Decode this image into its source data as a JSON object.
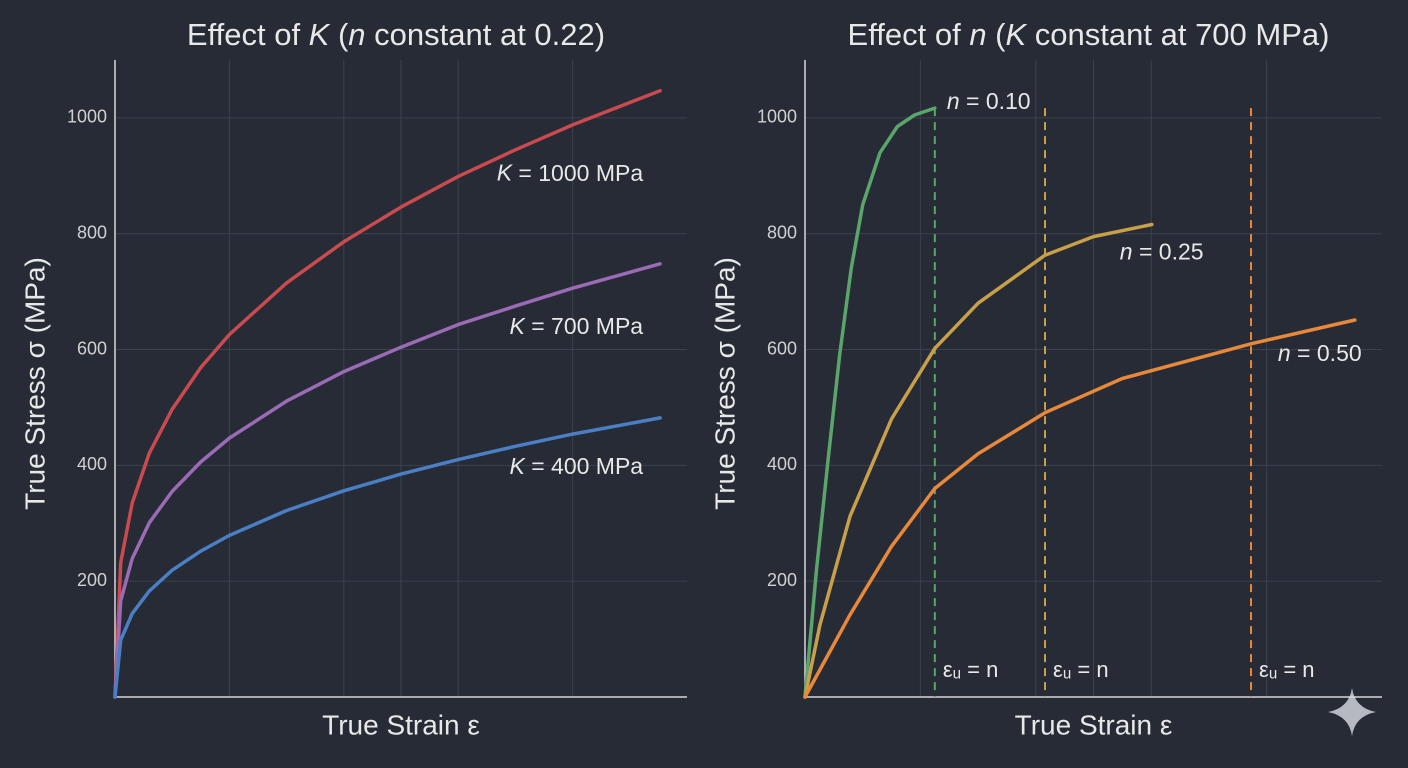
{
  "chart_data": [
    {
      "type": "line",
      "title": "Effect of K (n constant at 0.22)",
      "x_label": "True Strain ε",
      "y_label": "True Stress σ (MPa)",
      "xlim": [
        0,
        1
      ],
      "ylim": [
        0,
        1100
      ],
      "yticks": [
        200,
        400,
        600,
        800,
        1000
      ],
      "grid": true,
      "x": [
        0,
        0.01,
        0.03,
        0.06,
        0.1,
        0.15,
        0.2,
        0.3,
        0.4,
        0.5,
        0.6,
        0.7,
        0.8,
        0.953
      ],
      "series": [
        {
          "name": "K = 1000 MPa",
          "color": "#c94a4f",
          "values": [
            0,
            232,
            335,
            421,
            497,
            569,
            626,
            715,
            786,
            846,
            899,
            945,
            988,
            1047
          ]
        },
        {
          "name": "K = 700 MPa",
          "color": "#9b6bb5",
          "values": [
            0,
            166,
            239,
            301,
            355,
            406,
            447,
            511,
            562,
            604,
            643,
            675,
            706,
            748
          ]
        },
        {
          "name": "K = 400 MPa",
          "color": "#4a7fc4",
          "values": [
            0,
            98,
            144,
            183,
            219,
            252,
            279,
            322,
            356,
            385,
            410,
            433,
            454,
            482
          ]
        }
      ]
    },
    {
      "type": "line",
      "title": "Effect of n (K constant at 700 MPa)",
      "x_label": "True Strain ε",
      "y_label": "True Stress σ (MPa)",
      "xlim": [
        0,
        1
      ],
      "ylim": [
        0,
        1100
      ],
      "yticks": [
        200,
        400,
        600,
        800,
        1000
      ],
      "grid": true,
      "series": [
        {
          "name": "n = 0.10",
          "color": "#5aa66a",
          "x": [
            0,
            0.02,
            0.04,
            0.06,
            0.08,
            0.1,
            0.13,
            0.16,
            0.19,
            0.225
          ],
          "values": [
            0,
            220,
            410,
            590,
            740,
            850,
            940,
            985,
            1005,
            1017
          ]
        },
        {
          "name": "n = 0.25",
          "color": "#c9a04a",
          "x": [
            0,
            0.026,
            0.078,
            0.15,
            0.225,
            0.3,
            0.416,
            0.5,
            0.601
          ],
          "values": [
            0,
            125,
            312,
            480,
            602,
            680,
            763,
            795,
            816
          ]
        },
        {
          "name": "n = 0.50",
          "color": "#e8883a",
          "x": [
            0,
            0.078,
            0.15,
            0.225,
            0.3,
            0.416,
            0.55,
            0.773,
            0.953
          ],
          "values": [
            0,
            142,
            260,
            360,
            420,
            491,
            550,
            610,
            651
          ]
        }
      ],
      "annotations": [
        {
          "x": 0.225,
          "label": "εᵤ = n",
          "color": "#5aa66a"
        },
        {
          "x": 0.416,
          "label": "εᵤ = n",
          "color": "#c9a04a"
        },
        {
          "x": 0.773,
          "label": "εᵤ = n",
          "color": "#e8883a"
        }
      ]
    }
  ]
}
